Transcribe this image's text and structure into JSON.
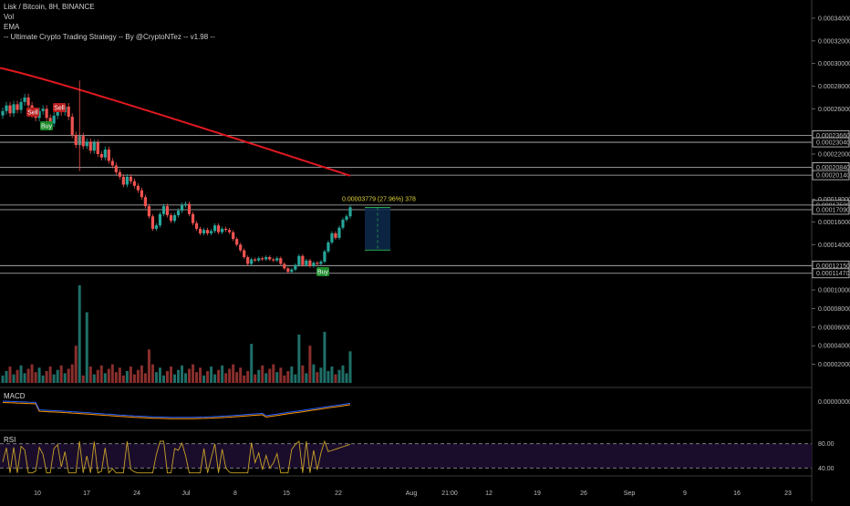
{
  "header": {
    "symbol_line": "Lisk / Bitcoin, 8H, BINANCE",
    "vol_label": "Vol",
    "ema_label": "EMA",
    "strategy_label": "-- Ultimate Crypto Trading Strategy -- By @CryptoNTez -- v1.98 --"
  },
  "price_axis": {
    "ticks": [
      "0.00034000",
      "0.00032000",
      "0.00030000",
      "0.00028000",
      "0.00026000",
      "0.00022000",
      "0.00018000",
      "0.00016000",
      "0.00014000",
      "0.00010000",
      "0.00008000",
      "0.00006000",
      "0.00004000",
      "0.00002000"
    ],
    "boxed_levels": [
      "0.00023660",
      "0.00023040",
      "0.00020840",
      "0.00020140",
      "0.00017500",
      "0.00017090",
      "0.00012150",
      "0.00011470"
    ]
  },
  "colors": {
    "up": "#26a69a",
    "down": "#ef5350",
    "ema": "#e0191f",
    "macd": "#2962ff",
    "signal": "#ff9800",
    "rsi": "#c9a227",
    "rsi_band": "#1a0d2b",
    "sell_badge": "#b71c1c",
    "buy_badge": "#1b8a2a"
  },
  "signals": {
    "sell": "Sell",
    "buy": "Buy"
  },
  "measure": {
    "label": "0.00003779 (27.96%) 378"
  },
  "macd_pane": {
    "title": "MACD",
    "tick": "0.00000000"
  },
  "rsi_pane": {
    "title": "RSI",
    "ticks": [
      "80.00",
      "40.00"
    ]
  },
  "time_axis": {
    "labels": [
      "10",
      "17",
      "24",
      "Jul",
      "8",
      "15",
      "22",
      "Aug",
      "21:00",
      "12",
      "19",
      "26",
      "Sep",
      "9",
      "16",
      "23"
    ]
  },
  "chart_data": {
    "type": "candlestick",
    "pair": "Lisk / Bitcoin",
    "interval": "8H",
    "exchange": "BINANCE",
    "price_ylim": [
      0.00011,
      0.00035
    ],
    "horizontal_levels": [
      0.0002366,
      0.0002304,
      0.0002084,
      0.0002014,
      0.000175,
      0.0001709,
      0.0001215,
      0.0001147
    ],
    "measurement": {
      "start": 0.0001351,
      "end": 0.0001729,
      "change": 3.779e-05,
      "percent": 27.96,
      "bars": 378
    },
    "signals": [
      {
        "type": "Sell",
        "index": 8
      },
      {
        "type": "Sell",
        "index": 17
      },
      {
        "type": "Buy",
        "index": 13
      },
      {
        "type": "Buy",
        "index": 87
      }
    ],
    "closes": [
      0.000258,
      0.000263,
      0.000256,
      0.000264,
      0.000259,
      0.000266,
      0.00027,
      0.000263,
      0.000255,
      0.000252,
      0.000258,
      0.00026,
      0.000252,
      0.000247,
      0.000254,
      0.000261,
      0.000257,
      0.000262,
      0.000253,
      0.000237,
      0.000228,
      0.000236,
      0.000227,
      0.000231,
      0.000223,
      0.00023,
      0.00022,
      0.000217,
      0.000224,
      0.000214,
      0.00021,
      0.000204,
      0.0002,
      0.000193,
      0.0002,
      0.000196,
      0.000192,
      0.000188,
      0.000182,
      0.000174,
      0.000165,
      0.000154,
      0.000157,
      0.000167,
      0.000174,
      0.000166,
      0.000161,
      0.000166,
      0.00017,
      0.000175,
      0.000176,
      0.000167,
      0.000159,
      0.000154,
      0.00015,
      0.000153,
      0.00015,
      0.000152,
      0.000157,
      0.000151,
      0.000154,
      0.000153,
      0.000151,
      0.000145,
      0.00014,
      0.000135,
      0.000129,
      0.000123,
      0.000127,
      0.000126,
      0.000128,
      0.000127,
      0.000129,
      0.000127,
      0.000126,
      0.000128,
      0.000123,
      0.000119,
      0.000116,
      0.000118,
      0.000122,
      0.00013,
      0.000122,
      0.000126,
      0.000121,
      0.000124,
      0.000123,
      0.000125,
      0.000134,
      0.000142,
      0.00015,
      0.000146,
      0.000155,
      0.000162,
      0.000165,
      0.000173
    ],
    "volume_ylim": [
      0,
      0.00011
    ],
    "rsi_levels": [
      80,
      40
    ]
  }
}
